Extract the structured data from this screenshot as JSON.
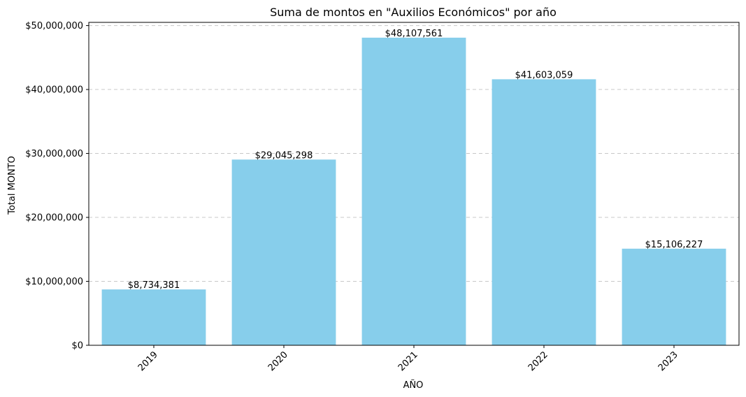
{
  "chart_data": {
    "type": "bar",
    "title": "Suma de montos en \"Auxilios Económicos\" por año",
    "xlabel": "AÑO",
    "ylabel": "Total MONTO",
    "categories": [
      "2019",
      "2020",
      "2021",
      "2022",
      "2023"
    ],
    "values": [
      8734381,
      29045298,
      48107561,
      41603059,
      15106227
    ],
    "data_labels": [
      "$8,734,381",
      "$29,045,298",
      "$48,107,561",
      "$41,603,059",
      "$15,106,227"
    ],
    "ylim": [
      0,
      50500000
    ],
    "yticks": [
      0,
      10000000,
      20000000,
      30000000,
      40000000,
      50000000
    ],
    "ytick_labels": [
      "$0",
      "$10,000,000",
      "$20,000,000",
      "$30,000,000",
      "$40,000,000",
      "$50,000,000"
    ],
    "grid": "y-dashed",
    "bar_color": "#87ceeb",
    "xtick_rotation": 45
  }
}
